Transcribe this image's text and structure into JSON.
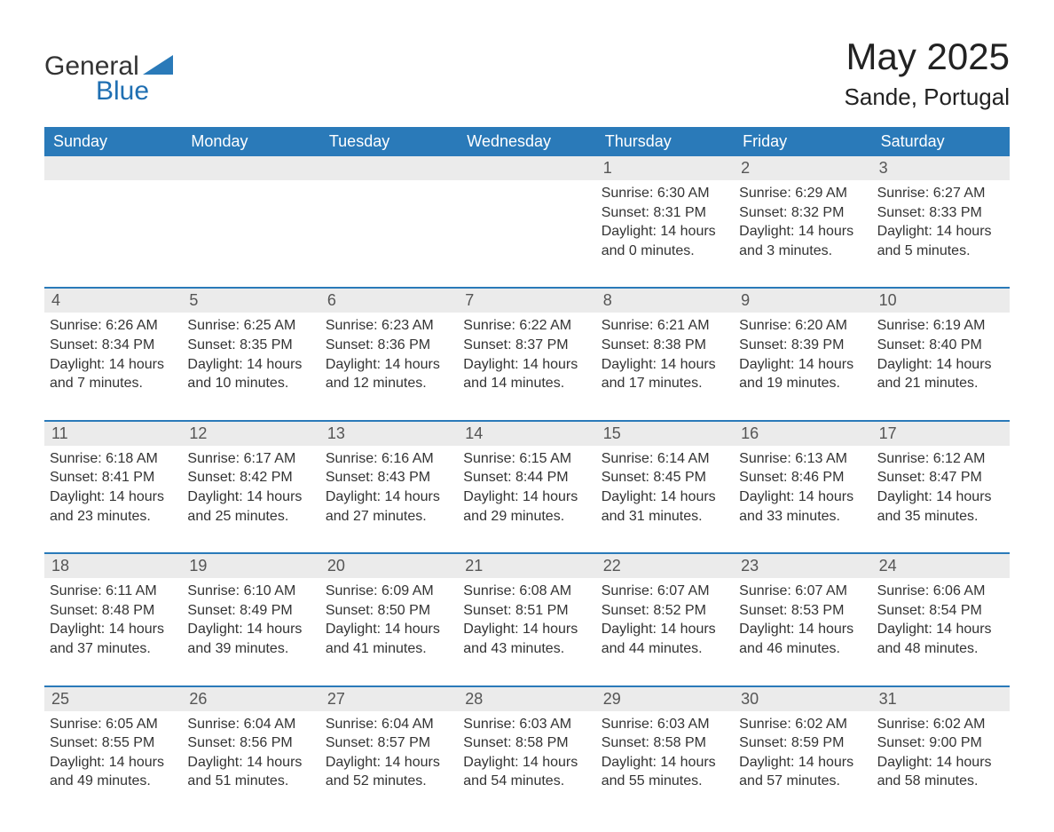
{
  "logo": {
    "text1": "General",
    "text2": "Blue",
    "text1_color": "#333333",
    "text2_color": "#1f6fb2",
    "triangle_color": "#2a7ab9"
  },
  "header": {
    "month_title": "May 2025",
    "location": "Sande, Portugal"
  },
  "colors": {
    "header_bg": "#2a7ab9",
    "header_text": "#ffffff",
    "row_divider": "#2a7ab9",
    "daynum_bg": "#ebebeb",
    "daynum_text": "#555555",
    "body_text": "#333333",
    "background": "#ffffff"
  },
  "fonts": {
    "title_size_pt": 32,
    "location_size_pt": 20,
    "weekday_size_pt": 14,
    "daynum_size_pt": 14,
    "body_size_pt": 12
  },
  "weekdays": [
    "Sunday",
    "Monday",
    "Tuesday",
    "Wednesday",
    "Thursday",
    "Friday",
    "Saturday"
  ],
  "weeks": [
    [
      null,
      null,
      null,
      null,
      {
        "d": "1",
        "sr": "6:30 AM",
        "ss": "8:31 PM",
        "dl": "14 hours and 0 minutes."
      },
      {
        "d": "2",
        "sr": "6:29 AM",
        "ss": "8:32 PM",
        "dl": "14 hours and 3 minutes."
      },
      {
        "d": "3",
        "sr": "6:27 AM",
        "ss": "8:33 PM",
        "dl": "14 hours and 5 minutes."
      }
    ],
    [
      {
        "d": "4",
        "sr": "6:26 AM",
        "ss": "8:34 PM",
        "dl": "14 hours and 7 minutes."
      },
      {
        "d": "5",
        "sr": "6:25 AM",
        "ss": "8:35 PM",
        "dl": "14 hours and 10 minutes."
      },
      {
        "d": "6",
        "sr": "6:23 AM",
        "ss": "8:36 PM",
        "dl": "14 hours and 12 minutes."
      },
      {
        "d": "7",
        "sr": "6:22 AM",
        "ss": "8:37 PM",
        "dl": "14 hours and 14 minutes."
      },
      {
        "d": "8",
        "sr": "6:21 AM",
        "ss": "8:38 PM",
        "dl": "14 hours and 17 minutes."
      },
      {
        "d": "9",
        "sr": "6:20 AM",
        "ss": "8:39 PM",
        "dl": "14 hours and 19 minutes."
      },
      {
        "d": "10",
        "sr": "6:19 AM",
        "ss": "8:40 PM",
        "dl": "14 hours and 21 minutes."
      }
    ],
    [
      {
        "d": "11",
        "sr": "6:18 AM",
        "ss": "8:41 PM",
        "dl": "14 hours and 23 minutes."
      },
      {
        "d": "12",
        "sr": "6:17 AM",
        "ss": "8:42 PM",
        "dl": "14 hours and 25 minutes."
      },
      {
        "d": "13",
        "sr": "6:16 AM",
        "ss": "8:43 PM",
        "dl": "14 hours and 27 minutes."
      },
      {
        "d": "14",
        "sr": "6:15 AM",
        "ss": "8:44 PM",
        "dl": "14 hours and 29 minutes."
      },
      {
        "d": "15",
        "sr": "6:14 AM",
        "ss": "8:45 PM",
        "dl": "14 hours and 31 minutes."
      },
      {
        "d": "16",
        "sr": "6:13 AM",
        "ss": "8:46 PM",
        "dl": "14 hours and 33 minutes."
      },
      {
        "d": "17",
        "sr": "6:12 AM",
        "ss": "8:47 PM",
        "dl": "14 hours and 35 minutes."
      }
    ],
    [
      {
        "d": "18",
        "sr": "6:11 AM",
        "ss": "8:48 PM",
        "dl": "14 hours and 37 minutes."
      },
      {
        "d": "19",
        "sr": "6:10 AM",
        "ss": "8:49 PM",
        "dl": "14 hours and 39 minutes."
      },
      {
        "d": "20",
        "sr": "6:09 AM",
        "ss": "8:50 PM",
        "dl": "14 hours and 41 minutes."
      },
      {
        "d": "21",
        "sr": "6:08 AM",
        "ss": "8:51 PM",
        "dl": "14 hours and 43 minutes."
      },
      {
        "d": "22",
        "sr": "6:07 AM",
        "ss": "8:52 PM",
        "dl": "14 hours and 44 minutes."
      },
      {
        "d": "23",
        "sr": "6:07 AM",
        "ss": "8:53 PM",
        "dl": "14 hours and 46 minutes."
      },
      {
        "d": "24",
        "sr": "6:06 AM",
        "ss": "8:54 PM",
        "dl": "14 hours and 48 minutes."
      }
    ],
    [
      {
        "d": "25",
        "sr": "6:05 AM",
        "ss": "8:55 PM",
        "dl": "14 hours and 49 minutes."
      },
      {
        "d": "26",
        "sr": "6:04 AM",
        "ss": "8:56 PM",
        "dl": "14 hours and 51 minutes."
      },
      {
        "d": "27",
        "sr": "6:04 AM",
        "ss": "8:57 PM",
        "dl": "14 hours and 52 minutes."
      },
      {
        "d": "28",
        "sr": "6:03 AM",
        "ss": "8:58 PM",
        "dl": "14 hours and 54 minutes."
      },
      {
        "d": "29",
        "sr": "6:03 AM",
        "ss": "8:58 PM",
        "dl": "14 hours and 55 minutes."
      },
      {
        "d": "30",
        "sr": "6:02 AM",
        "ss": "8:59 PM",
        "dl": "14 hours and 57 minutes."
      },
      {
        "d": "31",
        "sr": "6:02 AM",
        "ss": "9:00 PM",
        "dl": "14 hours and 58 minutes."
      }
    ]
  ],
  "labels": {
    "sunrise_prefix": "Sunrise: ",
    "sunset_prefix": "Sunset: ",
    "daylight_prefix": "Daylight: "
  }
}
